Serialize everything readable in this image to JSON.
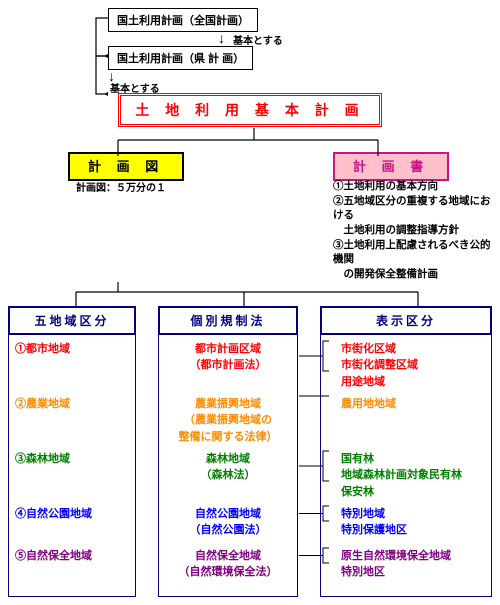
{
  "top": {
    "national": "国土利用計画（全国計画）",
    "pref": "国土利用計画（県 計 画）",
    "note": "基本とする"
  },
  "main_title": "土 地 利 用 基 本 計 画",
  "plan_map": {
    "label": "計 画 図",
    "caption": "計画図：５万分の１"
  },
  "plan_doc": {
    "label": "計 画 書",
    "items": [
      "①土地利用の基本方向",
      "②五地域区分の重複する地域における",
      "　土地利用の調整指導方針",
      "③土地利用上配慮されるべき公的機関",
      "　の開発保全整備計画"
    ]
  },
  "columns": {
    "zones": {
      "header": "五地域区分"
    },
    "laws": {
      "header": "個別規制法"
    },
    "disp": {
      "header": "表示区分"
    }
  },
  "rows": [
    {
      "color": "c-red",
      "zone": "①都市地域",
      "law_lines": [
        "都市計画区域",
        "（都市計画法）"
      ],
      "disp_lines": [
        "市街化区域",
        "市街化調整区域",
        "用途地域"
      ]
    },
    {
      "color": "c-orange",
      "zone": "②農業地域",
      "law_lines": [
        "農業振興地域",
        "（農業振興地域の",
        "整備に関する法律）"
      ],
      "disp_lines": [
        "農用地地域"
      ]
    },
    {
      "color": "c-green",
      "zone": "③森林地域",
      "law_lines": [
        "森林地域",
        "（森林法）"
      ],
      "disp_lines": [
        "国有林",
        "地域森林計画対象民有林",
        "保安林"
      ]
    },
    {
      "color": "c-blue",
      "zone": "④自然公園地域",
      "law_lines": [
        "自然公園地域",
        "（自然公園法）"
      ],
      "disp_lines": [
        "特別地域",
        "特別保護地区"
      ]
    },
    {
      "color": "c-purple",
      "zone": "⑤自然保全地域",
      "law_lines": [
        "自然保全地域",
        "（自然環境保全法）"
      ],
      "disp_lines": [
        "原生自然環境保全地域",
        "特別地区"
      ]
    }
  ],
  "style": {
    "connector_color": "#000",
    "law_bracket_color": "#000"
  }
}
